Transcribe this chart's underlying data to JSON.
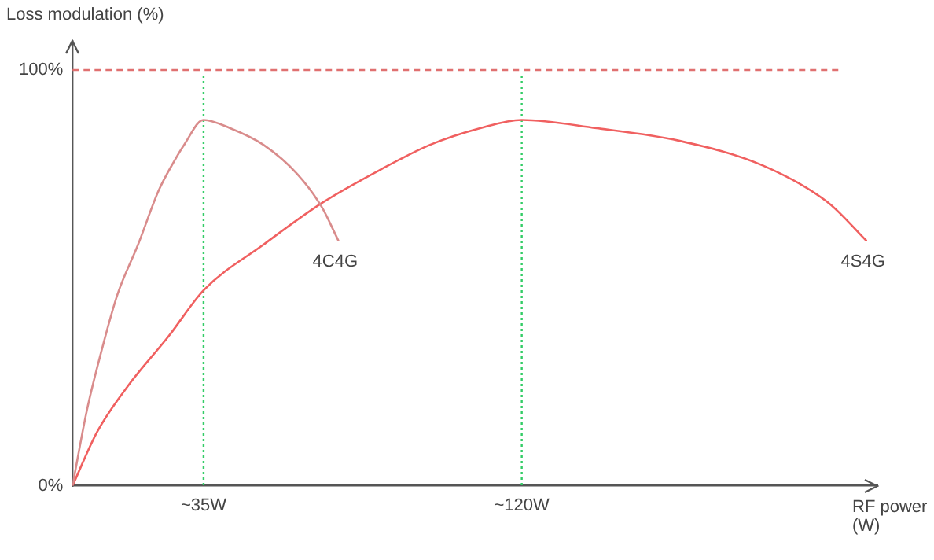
{
  "chart_data": {
    "type": "line",
    "xlabel": "RF power (W)",
    "ylabel": "Loss modulation (%)",
    "legend": false,
    "grid": false,
    "marker": "none",
    "line_style": "solid",
    "xlim": [
      0,
      215
    ],
    "xticks": [
      {
        "value": 35,
        "label": "~35W"
      },
      {
        "value": 120,
        "label": "~120W"
      }
    ],
    "ylim": [
      0,
      107
    ],
    "yticks": [
      {
        "value": 0,
        "label": "0%"
      },
      {
        "value": 100,
        "label": "100%"
      }
    ],
    "series": [
      {
        "name": "4C4G",
        "color": "#d98c8c",
        "x": [
          0,
          3.8,
          7.9,
          12,
          17.5,
          23,
          27.1,
          29.8,
          35,
          42.1,
          51,
          60,
          66.6,
          71
        ],
        "values": [
          0,
          18,
          33,
          46,
          58,
          71,
          78,
          82,
          88,
          86,
          82,
          75,
          67,
          59
        ]
      },
      {
        "name": "4S4G",
        "color": "#f06060",
        "x": [
          0,
          6.6,
          14.8,
          25.7,
          35,
          51,
          66.6,
          82.2,
          95.5,
          108.9,
          120,
          140,
          162,
          184.5,
          202,
          212
        ],
        "values": [
          0,
          13,
          24,
          36,
          47,
          58,
          68,
          76,
          82,
          86,
          88,
          86,
          83,
          77,
          68,
          59
        ]
      }
    ],
    "ref_lines": [
      {
        "axis": "y",
        "value": 100,
        "color": "#e07070",
        "line_style": "dashed"
      },
      {
        "axis": "x",
        "value": 35,
        "color": "#33cc66",
        "line_style": "dotted"
      },
      {
        "axis": "x",
        "value": 120,
        "color": "#33cc66",
        "line_style": "dotted"
      }
    ]
  }
}
